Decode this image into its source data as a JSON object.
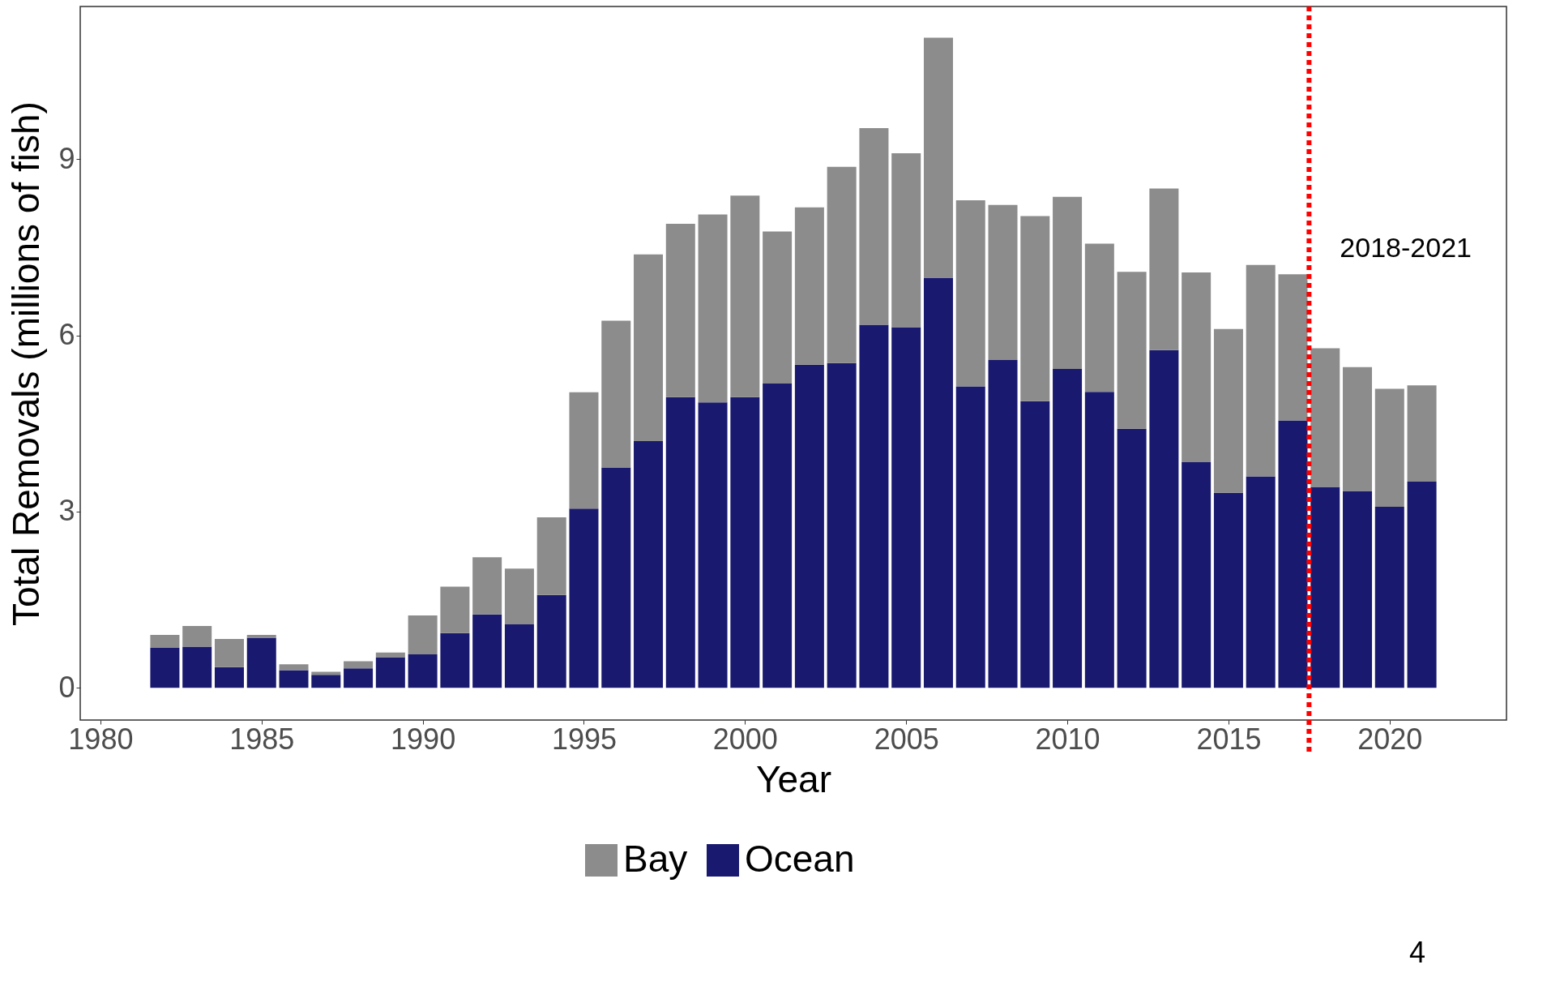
{
  "chart_data": {
    "type": "bar",
    "stacked": true,
    "xlabel": "Year",
    "ylabel": "Total Removals (millions of fish)",
    "x": [
      1982,
      1983,
      1984,
      1985,
      1986,
      1987,
      1988,
      1989,
      1990,
      1991,
      1992,
      1993,
      1994,
      1995,
      1996,
      1997,
      1998,
      1999,
      2000,
      2001,
      2002,
      2003,
      2004,
      2005,
      2006,
      2007,
      2008,
      2009,
      2010,
      2011,
      2012,
      2013,
      2014,
      2015,
      2016,
      2017,
      2018,
      2019,
      2020,
      2021
    ],
    "series": [
      {
        "name": "Ocean",
        "color": "#191970",
        "values": [
          0.68,
          0.7,
          0.35,
          0.85,
          0.3,
          0.22,
          0.33,
          0.52,
          0.57,
          0.93,
          1.25,
          1.08,
          1.58,
          3.05,
          3.75,
          4.2,
          4.95,
          4.86,
          4.95,
          5.18,
          5.5,
          5.53,
          6.18,
          6.14,
          6.98,
          5.13,
          5.58,
          4.88,
          5.43,
          5.04,
          4.41,
          5.75,
          3.84,
          3.32,
          3.6,
          4.55,
          3.42,
          3.35,
          3.08,
          3.51
        ]
      },
      {
        "name": "Bay",
        "color": "#8c8c8c",
        "values": [
          0.22,
          0.35,
          0.48,
          0.05,
          0.1,
          0.05,
          0.12,
          0.08,
          0.66,
          0.79,
          0.97,
          0.95,
          1.32,
          1.98,
          2.5,
          3.18,
          2.95,
          3.2,
          3.43,
          2.59,
          2.68,
          3.34,
          3.35,
          2.96,
          4.09,
          3.17,
          2.64,
          3.15,
          2.93,
          2.52,
          2.67,
          2.75,
          3.23,
          2.79,
          3.6,
          2.49,
          2.36,
          2.11,
          2.01,
          1.64
        ]
      }
    ],
    "xlim": [
      1979.5,
      2023.5
    ],
    "xticks": [
      1980,
      1985,
      1990,
      1995,
      2000,
      2005,
      2010,
      2015,
      2020
    ],
    "ylim": [
      -0.55,
      11.6
    ],
    "yticks": [
      0,
      3,
      6,
      9
    ],
    "grid": false,
    "legend": "bottom",
    "ref_lines": [
      {
        "axis": "x",
        "value": 2017.5,
        "label": "2018-2021",
        "color": "#ff0000",
        "line_style": "dotted"
      }
    ],
    "annotations": [
      "4"
    ]
  }
}
